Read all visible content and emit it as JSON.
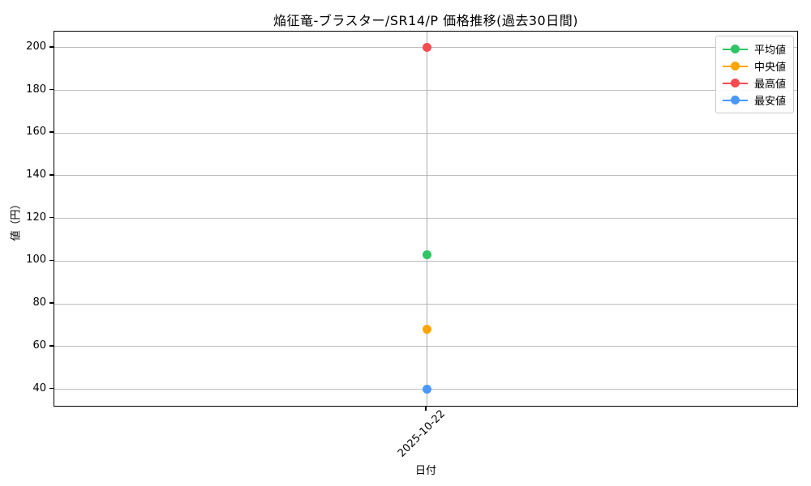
{
  "chart_data": {
    "type": "line",
    "title": "焔征竜-ブラスター/SR14/P 価格推移(過去30日間)",
    "xlabel": "日付",
    "ylabel": "値（円）",
    "x": [
      "2025-10-22"
    ],
    "series": [
      {
        "name": "平均値",
        "color": "#2fc564",
        "values": [
          103
        ]
      },
      {
        "name": "中央値",
        "color": "#ffa502",
        "values": [
          68
        ]
      },
      {
        "name": "最高値",
        "color": "#f74c50",
        "values": [
          200
        ]
      },
      {
        "name": "最安値",
        "color": "#4a98f7",
        "values": [
          40
        ]
      }
    ],
    "yticks": [
      40,
      60,
      80,
      100,
      120,
      140,
      160,
      180,
      200
    ],
    "ylim": [
      31.5,
      207.5
    ],
    "grid": true,
    "legend_position": "upper right"
  }
}
